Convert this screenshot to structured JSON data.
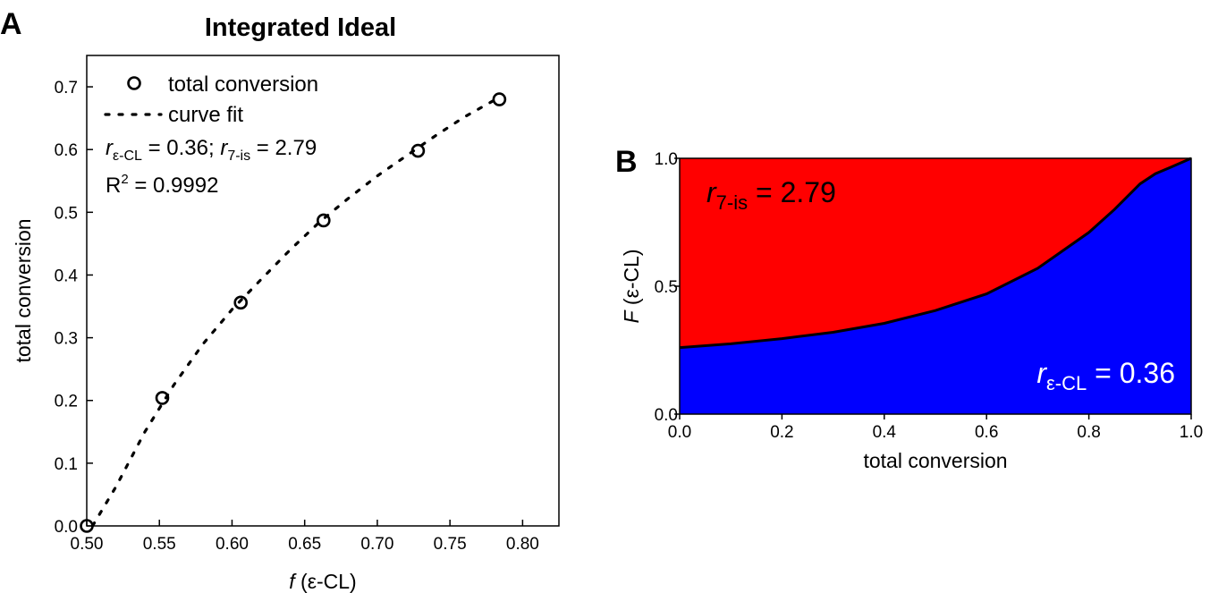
{
  "chart_data": [
    {
      "panel": "A",
      "type": "scatter",
      "title": "Integrated Ideal",
      "xlabel_italic": "f",
      "xlabel_rest": " (ε-CL)",
      "ylabel": "total conversion",
      "xlim": [
        0.5,
        0.825
      ],
      "ylim": [
        0.0,
        0.75
      ],
      "xticks": [
        "0.50",
        "0.55",
        "0.60",
        "0.65",
        "0.70",
        "0.75",
        "0.80"
      ],
      "yticks": [
        "0.0",
        "0.1",
        "0.2",
        "0.3",
        "0.4",
        "0.5",
        "0.6",
        "0.7"
      ],
      "series": [
        {
          "name": "total conversion",
          "style": "open-circle",
          "points": [
            [
              0.5,
              0.0
            ],
            [
              0.552,
              0.204
            ],
            [
              0.606,
              0.356
            ],
            [
              0.663,
              0.487
            ],
            [
              0.728,
              0.598
            ],
            [
              0.784,
              0.68
            ]
          ]
        },
        {
          "name": "curve fit",
          "style": "dotted-line",
          "points": [
            [
              0.504,
              0.0
            ],
            [
              0.52,
              0.062
            ],
            [
              0.54,
              0.15
            ],
            [
              0.56,
              0.225
            ],
            [
              0.58,
              0.29
            ],
            [
              0.6,
              0.345
            ],
            [
              0.62,
              0.393
            ],
            [
              0.64,
              0.44
            ],
            [
              0.66,
              0.484
            ],
            [
              0.68,
              0.522
            ],
            [
              0.7,
              0.558
            ],
            [
              0.72,
              0.59
            ],
            [
              0.74,
              0.622
            ],
            [
              0.76,
              0.652
            ],
            [
              0.78,
              0.678
            ]
          ]
        }
      ],
      "legend_position": "top-left",
      "annotations": {
        "r1_sym": "r",
        "r1_sub": "ε-CL",
        "r1_val": " = 0.36; ",
        "r2_sym": "r",
        "r2_sub": "7-is",
        "r2_val": " = 2.79",
        "r2fit_base": "R",
        "r2fit_sup": "2",
        "r2fit_val": " = 0.9992"
      },
      "grid": false
    },
    {
      "panel": "B",
      "type": "area",
      "xlabel": "total conversion",
      "ylabel_italic": "F",
      "ylabel_rest": " (ε-CL)",
      "xlim": [
        0.0,
        1.0
      ],
      "ylim": [
        0.0,
        1.0
      ],
      "xticks": [
        "0.0",
        "0.2",
        "0.4",
        "0.6",
        "0.8",
        "1.0"
      ],
      "yticks": [
        "0.0",
        "0.5",
        "1.0"
      ],
      "boundary": [
        [
          0.0,
          0.26
        ],
        [
          0.1,
          0.275
        ],
        [
          0.2,
          0.295
        ],
        [
          0.3,
          0.32
        ],
        [
          0.4,
          0.355
        ],
        [
          0.5,
          0.405
        ],
        [
          0.6,
          0.47
        ],
        [
          0.7,
          0.57
        ],
        [
          0.8,
          0.71
        ],
        [
          0.85,
          0.8
        ],
        [
          0.9,
          0.9
        ],
        [
          0.93,
          0.94
        ],
        [
          0.96,
          0.965
        ],
        [
          1.0,
          1.0
        ]
      ],
      "regions": [
        {
          "label_sym": "r",
          "label_sub": "7-is",
          "label_val": " = 2.79",
          "color": "#ff0000",
          "position": "above"
        },
        {
          "label_sym": "r",
          "label_sub": "ε-CL",
          "label_val": " = 0.36",
          "color": "#0000ff",
          "position": "below"
        }
      ],
      "grid": false
    }
  ],
  "panel_labels": [
    "A",
    "B"
  ]
}
